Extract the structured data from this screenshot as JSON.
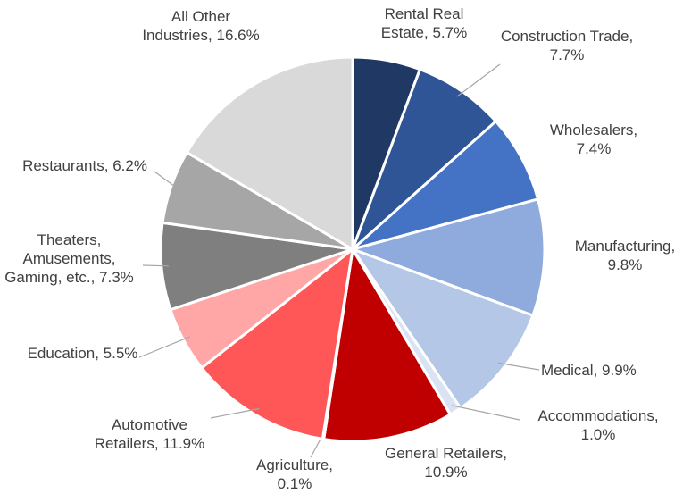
{
  "chart_data": {
    "type": "pie",
    "categories": [
      "Rental Real Estate,",
      "Construction Trade,",
      "Wholesalers,",
      "Manufacturing,",
      "Medical,",
      "Accommodations,",
      "General Retailers,",
      "Agriculture,",
      "Automotive Retailers,",
      "Education,",
      "Theaters, Amusements, Gaming, etc.,",
      "Restaurants,",
      "All Other Industries,"
    ],
    "values": [
      5.7,
      7.7,
      7.4,
      9.8,
      9.9,
      1.0,
      10.9,
      0.1,
      11.9,
      5.5,
      7.3,
      6.2,
      16.6
    ],
    "value_labels": [
      "5.7%",
      "7.7%",
      "7.4%",
      "9.8%",
      "9.9%",
      "1.0%",
      "10.9%",
      "0.1%",
      "11.9%",
      "5.5%",
      "7.3%",
      "6.2%",
      "16.6%"
    ],
    "colors": [
      "#203864",
      "#2f5597",
      "#4472c4",
      "#8faadc",
      "#b4c7e7",
      "#dae3f3",
      "#c00000",
      "#ff9999",
      "#ff5757",
      "#ffa7a7",
      "#7f7f7f",
      "#a6a6a6",
      "#d9d9d9"
    ]
  }
}
